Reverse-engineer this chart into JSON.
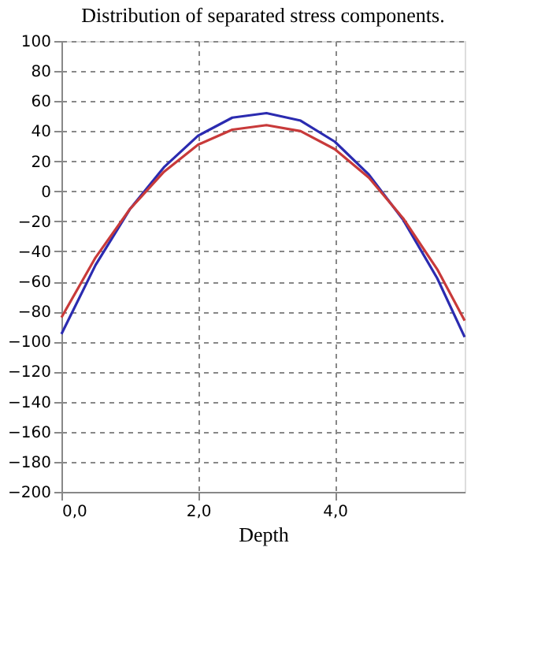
{
  "chart_data": {
    "type": "line",
    "title": "Distribution of separated stress components.",
    "xlabel": "Depth",
    "x": [
      0,
      0.5,
      1,
      1.5,
      2,
      2.5,
      3,
      3.5,
      4,
      4.5,
      5,
      5.5,
      5.9
    ],
    "series": [
      {
        "color": "#2b2bb0",
        "values": [
          -95,
          -49,
          -12,
          16,
          37,
          49,
          52,
          47,
          33,
          11,
          -19,
          -58,
          -97
        ]
      },
      {
        "color": "#c83a3a",
        "values": [
          -84,
          -44,
          -12,
          13,
          31,
          41,
          44,
          40,
          28,
          9,
          -18,
          -52,
          -86
        ]
      }
    ],
    "xlim": [
      0,
      5.9
    ],
    "xticks": [
      {
        "value": 0,
        "label": "0,0"
      },
      {
        "value": 2,
        "label": "2,0"
      },
      {
        "value": 4,
        "label": "4,0"
      }
    ],
    "ylim": [
      -200,
      100
    ],
    "yticks": [
      -200,
      -180,
      -160,
      -140,
      -120,
      -100,
      -80,
      -60,
      -40,
      -20,
      0,
      20,
      40,
      60,
      80,
      100
    ],
    "grid": true,
    "legend": false,
    "marker": "none",
    "line_style": "solid"
  }
}
